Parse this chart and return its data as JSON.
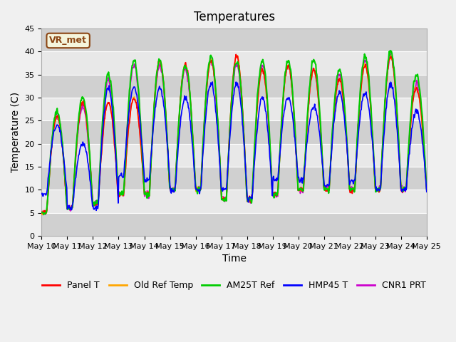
{
  "title": "Temperatures",
  "xlabel": "Time",
  "ylabel": "Temperature (C)",
  "ylim": [
    0,
    45
  ],
  "n_days": 15,
  "xtick_labels": [
    "May 10",
    "May 11",
    "May 12",
    "May 13",
    "May 14",
    "May 15",
    "May 16",
    "May 17",
    "May 18",
    "May 19",
    "May 20",
    "May 21",
    "May 22",
    "May 23",
    "May 24",
    "May 25"
  ],
  "ytick_values": [
    0,
    5,
    10,
    15,
    20,
    25,
    30,
    35,
    40,
    45
  ],
  "annotation_text": "VR_met",
  "annotation_color": "#8B4513",
  "annotation_bg": "#f5f5dc",
  "annotation_border": "#8B4513",
  "series_colors": {
    "Panel T": "#FF0000",
    "Old Ref Temp": "#FFA500",
    "AM25T Ref": "#00CC00",
    "HMP45 T": "#0000FF",
    "CNR1 PRT": "#CC00CC"
  },
  "panel_peaks": [
    26,
    29,
    29,
    30,
    38,
    37,
    38,
    39,
    36,
    37,
    36,
    34,
    37,
    39,
    32
  ],
  "panel_mins": [
    5,
    6,
    7,
    9,
    9,
    10,
    10,
    8,
    8,
    9,
    10,
    10,
    10,
    10,
    10
  ],
  "am25t_peaks": [
    27,
    30,
    35,
    38,
    38,
    37,
    39,
    38,
    38,
    38,
    38,
    36,
    39,
    40,
    35
  ],
  "hmp45_peaks": [
    24,
    20,
    32,
    32,
    32,
    30,
    33,
    33,
    30,
    30,
    28,
    31,
    31,
    33,
    27
  ],
  "hmp45_mins": [
    9,
    6,
    6,
    13,
    12,
    10,
    10,
    10,
    8,
    12,
    12,
    11,
    12,
    10,
    10
  ],
  "cnr1_peaks": [
    26,
    28,
    34,
    37,
    37,
    36,
    38,
    37,
    37,
    37,
    36,
    35,
    38,
    39,
    33
  ],
  "phase_shift": 0.2,
  "noise_scale": 0.3,
  "bg_color": "#f0f0f0",
  "plot_bg_color": "#e8e8e8",
  "title_fontsize": 12,
  "axis_fontsize": 10,
  "tick_fontsize": 8,
  "legend_fontsize": 9
}
